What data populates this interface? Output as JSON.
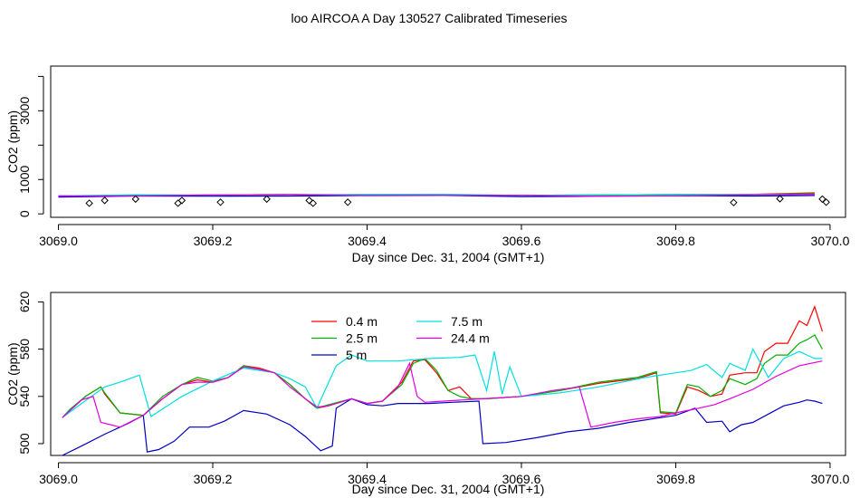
{
  "title": "loo AIRCOA A  Day 130527  Calibrated Timeseries",
  "chart_data": [
    {
      "type": "line",
      "xlabel": "Day since Dec. 31, 2004 (GMT+1)",
      "ylabel": "CO2 (ppm)",
      "xlim": [
        3068.99,
        3070.02
      ],
      "ylim": [
        -100,
        4300
      ],
      "x_ticks": [
        "3069.0",
        "3069.2",
        "3069.4",
        "3069.6",
        "3069.8",
        "3070.0"
      ],
      "y_ticks": [
        "0",
        "1000",
        "3000"
      ],
      "grid": false,
      "series": [
        {
          "name": "0.4 m",
          "color": "#ff0000",
          "x": [
            3069.0,
            3069.1,
            3069.2,
            3069.3,
            3069.4,
            3069.5,
            3069.6,
            3069.7,
            3069.8,
            3069.9,
            3069.98
          ],
          "y": [
            522,
            530,
            550,
            560,
            535,
            540,
            540,
            548,
            562,
            570,
            612
          ]
        },
        {
          "name": "2.5 m",
          "color": "#00b000",
          "x": [
            3069.0,
            3069.1,
            3069.2,
            3069.3,
            3069.4,
            3069.5,
            3069.6,
            3069.7,
            3069.8,
            3069.9,
            3069.98
          ],
          "y": [
            522,
            530,
            550,
            560,
            535,
            540,
            540,
            548,
            560,
            565,
            590
          ]
        },
        {
          "name": "5 m",
          "color": "#0000c0",
          "x": [
            3069.0,
            3069.1,
            3069.2,
            3069.3,
            3069.4,
            3069.5,
            3069.6,
            3069.7,
            3069.8,
            3069.9,
            3069.98
          ],
          "y": [
            490,
            520,
            515,
            520,
            532,
            535,
            502,
            515,
            525,
            520,
            536
          ]
        },
        {
          "name": "7.5 m",
          "color": "#00e0e0",
          "x": [
            3069.0,
            3069.1,
            3069.2,
            3069.3,
            3069.4,
            3069.5,
            3069.6,
            3069.7,
            3069.8,
            3069.9,
            3069.98
          ],
          "y": [
            522,
            556,
            550,
            560,
            570,
            573,
            540,
            550,
            560,
            560,
            572
          ]
        },
        {
          "name": "24.4 m",
          "color": "#e000e0",
          "x": [
            3069.0,
            3069.1,
            3069.2,
            3069.3,
            3069.4,
            3069.5,
            3069.6,
            3069.7,
            3069.8,
            3069.9,
            3069.98
          ],
          "y": [
            522,
            525,
            550,
            560,
            533,
            535,
            540,
            515,
            525,
            550,
            570
          ]
        }
      ],
      "markers": {
        "shape": "diamond",
        "x": [
          3069.04,
          3069.06,
          3069.1,
          3069.155,
          3069.16,
          3069.21,
          3069.27,
          3069.325,
          3069.33,
          3069.375,
          3069.875,
          3069.935,
          3069.99,
          3069.995
        ],
        "y": [
          310,
          390,
          430,
          310,
          390,
          340,
          430,
          390,
          310,
          340,
          330,
          440,
          430,
          340
        ]
      }
    },
    {
      "type": "line",
      "xlabel": "Day since Dec. 31, 2004 (GMT+1)",
      "ylabel": "CO2 (ppm)",
      "xlim": [
        3068.99,
        3070.02
      ],
      "ylim": [
        490,
        628
      ],
      "x_ticks": [
        "3069.0",
        "3069.2",
        "3069.4",
        "3069.6",
        "3069.8",
        "3070.0"
      ],
      "y_ticks": [
        "500",
        "540",
        "580",
        "620"
      ],
      "grid": false,
      "legend_position": "top-center",
      "series": [
        {
          "name": "0.4 m",
          "color": "#ff0000",
          "x": [
            3069.005,
            3069.015,
            3069.035,
            3069.055,
            3069.06,
            3069.08,
            3069.11,
            3069.135,
            3069.16,
            3069.18,
            3069.2,
            3069.22,
            3069.24,
            3069.26,
            3069.28,
            3069.3,
            3069.32,
            3069.335,
            3069.35,
            3069.38,
            3069.4,
            3069.42,
            3069.445,
            3069.46,
            3069.475,
            3069.49,
            3069.505,
            3069.52,
            3069.535,
            3069.555,
            3069.6,
            3069.65,
            3069.7,
            3069.75,
            3069.775,
            3069.78,
            3069.8,
            3069.815,
            3069.83,
            3069.845,
            3069.86,
            3069.87,
            3069.89,
            3069.905,
            3069.915,
            3069.93,
            3069.945,
            3069.96,
            3069.97,
            3069.98,
            3069.99
          ],
          "y": [
            522,
            528,
            540,
            548,
            542,
            526,
            524,
            538,
            550,
            554,
            552,
            556,
            566,
            564,
            560,
            550,
            538,
            530,
            532,
            538,
            534,
            536,
            552,
            570,
            571,
            560,
            545,
            548,
            538,
            538,
            540,
            545,
            551,
            555,
            560,
            526,
            525,
            548,
            545,
            540,
            542,
            558,
            560,
            560,
            578,
            585,
            585,
            604,
            600,
            616,
            595
          ]
        },
        {
          "name": "2.5 m",
          "color": "#00b000",
          "x": [
            3069.005,
            3069.015,
            3069.035,
            3069.055,
            3069.06,
            3069.08,
            3069.11,
            3069.135,
            3069.16,
            3069.18,
            3069.2,
            3069.22,
            3069.24,
            3069.26,
            3069.28,
            3069.3,
            3069.32,
            3069.335,
            3069.35,
            3069.38,
            3069.4,
            3069.42,
            3069.445,
            3069.46,
            3069.475,
            3069.49,
            3069.505,
            3069.52,
            3069.535,
            3069.555,
            3069.6,
            3069.65,
            3069.7,
            3069.75,
            3069.775,
            3069.78,
            3069.8,
            3069.815,
            3069.83,
            3069.845,
            3069.86,
            3069.87,
            3069.89,
            3069.905,
            3069.915,
            3069.93,
            3069.945,
            3069.96,
            3069.97,
            3069.98,
            3069.99
          ],
          "y": [
            522,
            529,
            540,
            548,
            543,
            526,
            524,
            540,
            550,
            556,
            553,
            556,
            566,
            563,
            560,
            550,
            538,
            530,
            533,
            538,
            534,
            536,
            550,
            568,
            572,
            562,
            545,
            540,
            538,
            538,
            540,
            545,
            552,
            556,
            561,
            527,
            526,
            550,
            548,
            540,
            545,
            555,
            550,
            555,
            568,
            575,
            575,
            585,
            588,
            592,
            580
          ]
        },
        {
          "name": "5 m",
          "color": "#0000c0",
          "x": [
            3069.005,
            3069.03,
            3069.06,
            3069.09,
            3069.11,
            3069.115,
            3069.13,
            3069.15,
            3069.17,
            3069.195,
            3069.215,
            3069.24,
            3069.27,
            3069.3,
            3069.32,
            3069.34,
            3069.355,
            3069.36,
            3069.38,
            3069.4,
            3069.42,
            3069.44,
            3069.48,
            3069.51,
            3069.545,
            3069.55,
            3069.58,
            3069.62,
            3069.66,
            3069.7,
            3069.74,
            3069.78,
            3069.8,
            3069.825,
            3069.84,
            3069.86,
            3069.87,
            3069.885,
            3069.9,
            3069.92,
            3069.94,
            3069.96,
            3069.97,
            3069.98,
            3069.99
          ],
          "y": [
            490,
            498,
            508,
            517,
            524,
            493,
            495,
            502,
            514,
            514,
            519,
            528,
            525,
            516,
            506,
            494,
            498,
            530,
            538,
            533,
            532,
            534,
            534,
            535,
            536,
            500,
            501,
            505,
            510,
            513,
            518,
            522,
            524,
            530,
            518,
            519,
            510,
            516,
            518,
            525,
            532,
            535,
            537,
            536,
            534
          ]
        },
        {
          "name": "7.5 m",
          "color": "#00e0e0",
          "x": [
            3069.005,
            3069.03,
            3069.06,
            3069.08,
            3069.105,
            3069.12,
            3069.16,
            3069.2,
            3069.24,
            3069.28,
            3069.3,
            3069.32,
            3069.335,
            3069.36,
            3069.38,
            3069.4,
            3069.44,
            3069.48,
            3069.52,
            3069.54,
            3069.555,
            3069.565,
            3069.575,
            3069.585,
            3069.6,
            3069.65,
            3069.7,
            3069.76,
            3069.8,
            3069.82,
            3069.84,
            3069.86,
            3069.87,
            3069.89,
            3069.9,
            3069.92,
            3069.94,
            3069.96,
            3069.98,
            3069.99
          ],
          "y": [
            522,
            534,
            548,
            552,
            558,
            523,
            540,
            553,
            564,
            560,
            555,
            548,
            530,
            566,
            575,
            570,
            570,
            572,
            573,
            575,
            545,
            578,
            542,
            565,
            540,
            543,
            548,
            556,
            560,
            562,
            567,
            556,
            568,
            562,
            580,
            556,
            572,
            578,
            572,
            572
          ]
        },
        {
          "name": "24.4 m",
          "color": "#e000e0",
          "x": [
            3069.005,
            3069.03,
            3069.045,
            3069.055,
            3069.08,
            3069.11,
            3069.135,
            3069.16,
            3069.18,
            3069.2,
            3069.22,
            3069.24,
            3069.26,
            3069.28,
            3069.3,
            3069.32,
            3069.335,
            3069.35,
            3069.38,
            3069.4,
            3069.42,
            3069.44,
            3069.455,
            3069.465,
            3069.475,
            3069.5,
            3069.55,
            3069.6,
            3069.64,
            3069.675,
            3069.69,
            3069.72,
            3069.75,
            3069.78,
            3069.8,
            3069.83,
            3069.85,
            3069.87,
            3069.9,
            3069.93,
            3069.96,
            3069.99
          ],
          "y": [
            522,
            537,
            540,
            518,
            514,
            524,
            538,
            550,
            552,
            552,
            556,
            565,
            563,
            560,
            548,
            538,
            531,
            532,
            538,
            534,
            536,
            548,
            568,
            540,
            535,
            536,
            538,
            540,
            545,
            548,
            514,
            518,
            521,
            523,
            526,
            530,
            533,
            538,
            546,
            557,
            566,
            570
          ]
        }
      ]
    }
  ]
}
